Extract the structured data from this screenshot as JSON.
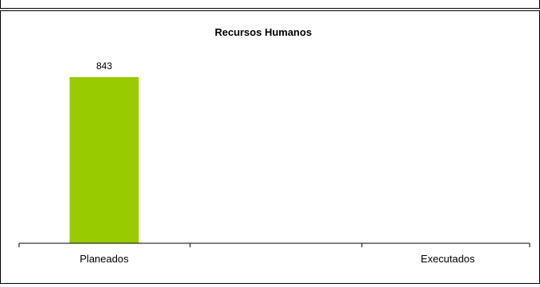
{
  "chart_data": {
    "type": "bar",
    "title": "Recursos Humanos",
    "categories": [
      "Planeados",
      "Executados"
    ],
    "values": [
      843,
      null
    ],
    "data_labels": [
      "843",
      null
    ],
    "bar_color": "#99cc00",
    "xlabel": "",
    "ylabel": "",
    "grid": false,
    "legend": "none"
  }
}
